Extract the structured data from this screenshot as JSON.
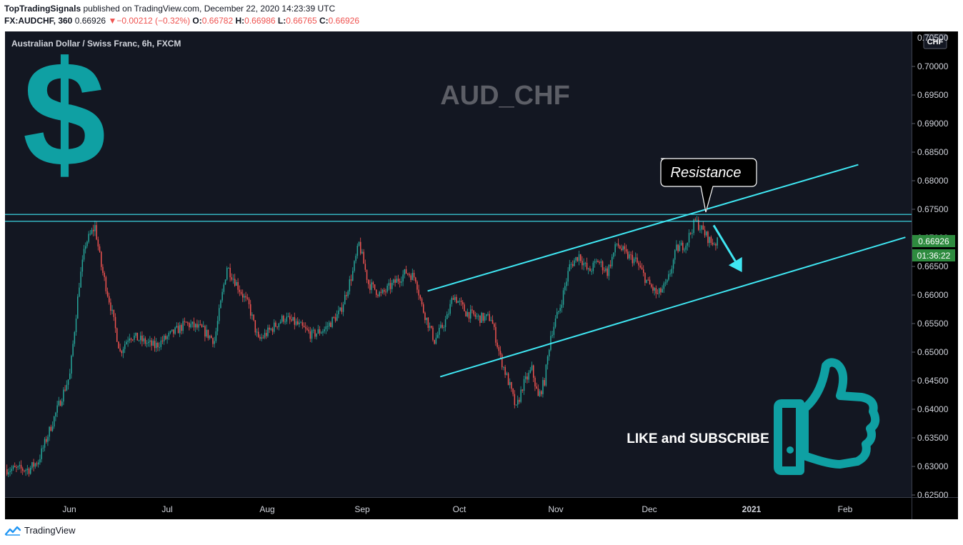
{
  "header": {
    "publisher": "TopTradingSignals",
    "published_text": "published on TradingView.com, December 22, 2020 14:23:39 UTC",
    "symbol": "FX:AUDCHF, 360",
    "last": "0.66926",
    "change_arrow": "▼",
    "change": "−0.00212 (−0.32%)",
    "o_label": "O:",
    "o": "0.66782",
    "h_label": "H:",
    "h": "0.66986",
    "l_label": "L:",
    "l": "0.66765",
    "c_label": "C:",
    "c": "0.66926"
  },
  "chart_title": "Australian Dollar / Swiss Franc, 6h, FXCM",
  "currency_button": "CHF",
  "footer": {
    "brand": "TradingView",
    "logo_icon": "tradingview-logo-icon"
  },
  "chart_data": {
    "type": "candlestick",
    "title": "AUD_CHF",
    "currency": "CHF",
    "price_scale": [
      "0.70000",
      "0.69500",
      "0.69000",
      "0.68500",
      "0.68000",
      "0.67500",
      "0.67000",
      "0.66500",
      "0.66000",
      "0.65500",
      "0.65000",
      "0.64500",
      "0.64000",
      "0.63500",
      "0.63000",
      "0.62500"
    ],
    "time_labels": [
      "Jun",
      "Jul",
      "Aug",
      "Sep",
      "Oct",
      "Nov",
      "Dec",
      "2021",
      "Feb"
    ],
    "price_axis_top_label": "0.70500",
    "ylim": [
      0.6245,
      0.7055
    ],
    "current_price": "0.66926",
    "countdown": "01:36:22",
    "colors": {
      "background": "#000000",
      "up": "#26a69a",
      "down": "#ef5350",
      "lines": "#3fe6f2",
      "accent": "#0fa0a3",
      "price_tag": "#2e8b3f",
      "watermark": "#5c5e66"
    },
    "path": [
      [
        "2020-05-19",
        0.6295
      ],
      [
        "2020-05-22",
        0.631
      ],
      [
        "2020-05-26",
        0.637
      ],
      [
        "2020-05-28",
        0.64
      ],
      [
        "2020-06-01",
        0.646
      ],
      [
        "2020-06-04",
        0.662
      ],
      [
        "2020-06-06",
        0.669
      ],
      [
        "2020-06-09",
        0.672
      ],
      [
        "2020-06-11",
        0.665
      ],
      [
        "2020-06-14",
        0.658
      ],
      [
        "2020-06-17",
        0.65
      ],
      [
        "2020-06-20",
        0.653
      ],
      [
        "2020-06-24",
        0.652
      ],
      [
        "2020-06-28",
        0.651
      ],
      [
        "2020-07-03",
        0.653
      ],
      [
        "2020-07-08",
        0.655
      ],
      [
        "2020-07-13",
        0.654
      ],
      [
        "2020-07-17",
        0.652
      ],
      [
        "2020-07-21",
        0.665
      ],
      [
        "2020-07-24",
        0.662
      ],
      [
        "2020-07-28",
        0.658
      ],
      [
        "2020-07-31",
        0.652
      ],
      [
        "2020-08-04",
        0.654
      ],
      [
        "2020-08-08",
        0.656
      ],
      [
        "2020-08-12",
        0.655
      ],
      [
        "2020-08-17",
        0.653
      ],
      [
        "2020-08-21",
        0.654
      ],
      [
        "2020-08-26",
        0.657
      ],
      [
        "2020-08-30",
        0.664
      ],
      [
        "2020-09-01",
        0.669
      ],
      [
        "2020-09-04",
        0.662
      ],
      [
        "2020-09-08",
        0.66
      ],
      [
        "2020-09-12",
        0.662
      ],
      [
        "2020-09-16",
        0.664
      ],
      [
        "2020-09-19",
        0.663
      ],
      [
        "2020-09-21",
        0.658
      ],
      [
        "2020-09-25",
        0.652
      ],
      [
        "2020-09-29",
        0.656
      ],
      [
        "2020-10-01",
        0.66
      ],
      [
        "2020-10-05",
        0.657
      ],
      [
        "2020-10-09",
        0.656
      ],
      [
        "2020-10-13",
        0.656
      ],
      [
        "2020-10-16",
        0.649
      ],
      [
        "2020-10-19",
        0.644
      ],
      [
        "2020-10-21",
        0.64
      ],
      [
        "2020-10-23",
        0.644
      ],
      [
        "2020-10-26",
        0.647
      ],
      [
        "2020-10-28",
        0.642
      ],
      [
        "2020-10-30",
        0.645
      ],
      [
        "2020-11-01",
        0.653
      ],
      [
        "2020-11-04",
        0.658
      ],
      [
        "2020-11-07",
        0.665
      ],
      [
        "2020-11-10",
        0.667
      ],
      [
        "2020-11-13",
        0.664
      ],
      [
        "2020-11-16",
        0.666
      ],
      [
        "2020-11-19",
        0.664
      ],
      [
        "2020-11-22",
        0.669
      ],
      [
        "2020-11-25",
        0.667
      ],
      [
        "2020-11-28",
        0.666
      ],
      [
        "2020-12-02",
        0.662
      ],
      [
        "2020-12-05",
        0.66
      ],
      [
        "2020-12-08",
        0.662
      ],
      [
        "2020-12-11",
        0.668
      ],
      [
        "2020-12-14",
        0.669
      ],
      [
        "2020-12-17",
        0.673
      ],
      [
        "2020-12-19",
        0.6715
      ],
      [
        "2020-12-22",
        0.6692
      ]
    ],
    "annotations": {
      "resistance_label": "Resistance",
      "horizontal_resistance": [
        0.6741,
        0.6729
      ],
      "upper_channel": [
        [
          "2020-09-23",
          0.6607
        ],
        [
          "2021-02-07",
          0.6828
        ]
      ],
      "lower_channel": [
        [
          "2020-09-27",
          0.6457
        ],
        [
          "2021-02-22",
          0.6701
        ]
      ],
      "arrow": [
        [
          "2020-12-23",
          0.6722
        ],
        [
          "2021-01-01",
          0.664
        ]
      ],
      "cta_text": "LIKE and SUBSCRIBE"
    }
  }
}
